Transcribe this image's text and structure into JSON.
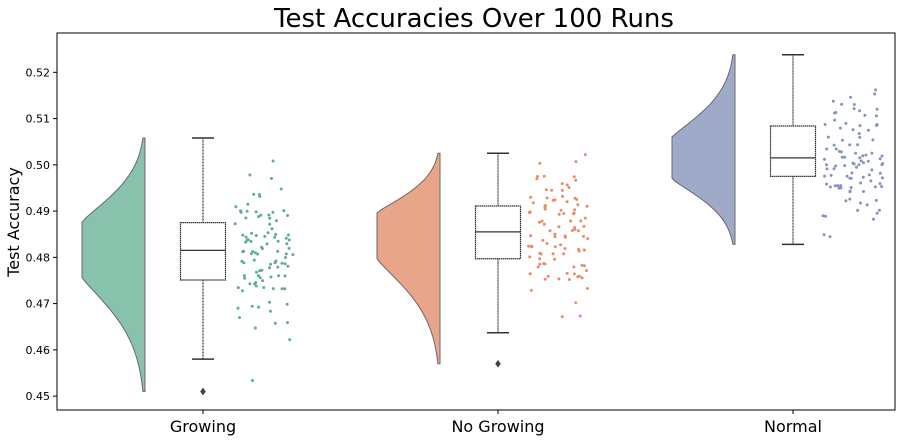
{
  "chart_data": {
    "type": "raincloud",
    "title": "Test Accuracies Over 100 Runs",
    "xlabel": "",
    "ylabel": "Test Accuracy",
    "ylim": [
      0.447,
      0.5285
    ],
    "yticks": [
      "0.45",
      "0.46",
      "0.47",
      "0.48",
      "0.49",
      "0.50",
      "0.51",
      "0.52"
    ],
    "categories": [
      "Growing",
      "No Growing",
      "Normal"
    ],
    "colors": [
      "#88c2ad",
      "#e9a589",
      "#9faac8"
    ],
    "strip_colors": [
      "#5fae93",
      "#e88f69",
      "#8695bd"
    ],
    "grid": false,
    "legend": "none",
    "series": [
      {
        "box": {
          "min": 0.458,
          "q1": 0.4751,
          "median": 0.4815,
          "q3": 0.4875,
          "max": 0.5058
        },
        "outliers": [
          0.451
        ],
        "violin_range": [
          0.451,
          0.5058
        ],
        "violin_mode": 0.4835,
        "jitter_min": 0.451,
        "jitter_max": 0.5058
      },
      {
        "box": {
          "min": 0.4637,
          "q1": 0.4797,
          "median": 0.4855,
          "q3": 0.4911,
          "max": 0.5025
        },
        "outliers": [
          0.457
        ],
        "violin_range": [
          0.457,
          0.5025
        ],
        "violin_mode": 0.4865,
        "jitter_min": 0.457,
        "jitter_max": 0.5025
      },
      {
        "box": {
          "min": 0.4828,
          "q1": 0.4975,
          "median": 0.5015,
          "q3": 0.5084,
          "max": 0.5238
        },
        "outliers": [],
        "violin_range": [
          0.4828,
          0.5238
        ],
        "violin_mode": 0.5005,
        "jitter_min": 0.4828,
        "jitter_max": 0.5238
      }
    ]
  }
}
